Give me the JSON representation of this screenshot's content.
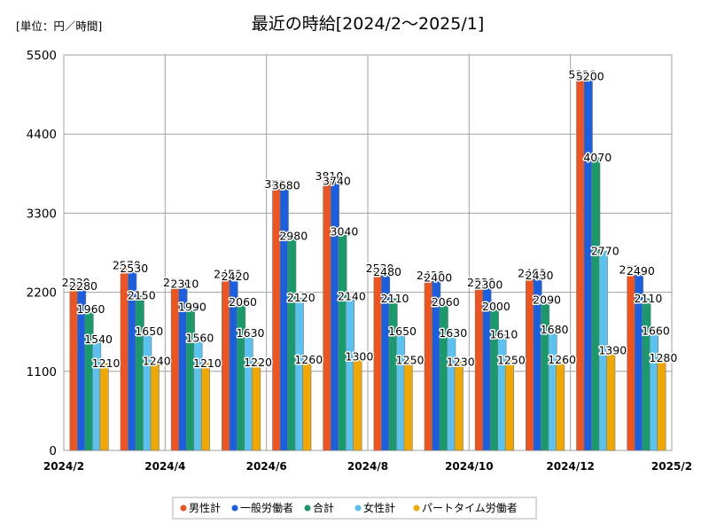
{
  "chart_data": {
    "type": "bar",
    "title": "最近の時給[2024/2～2025/1]",
    "unit_label": "[単位：円／時間]",
    "ylim": [
      0,
      5500
    ],
    "yticks": [
      0,
      1100,
      2200,
      3300,
      4400,
      5500
    ],
    "categories": [
      "2024/2",
      "2024/3",
      "2024/4",
      "2024/5",
      "2024/6",
      "2024/7",
      "2024/8",
      "2024/9",
      "2024/10",
      "2024/11",
      "2024/12",
      "2025/1"
    ],
    "x_tick_labels": [
      "2024/2",
      "2024/4",
      "2024/6",
      "2024/8",
      "2024/10",
      "2024/12",
      "2025/2"
    ],
    "grid": true,
    "legend_position": "bottom",
    "series": [
      {
        "name": "男性計",
        "color": "#f0541e",
        "values": [
          2330,
          2570,
          2330,
          2450,
          3700,
          3810,
          2530,
          2430,
          2330,
          2460,
          5220,
          2510
        ]
      },
      {
        "name": "一般労働者",
        "color": "#1a5fe0",
        "values": [
          2280,
          2530,
          2310,
          2420,
          3680,
          3740,
          2480,
          2400,
          2300,
          2430,
          5200,
          2490
        ]
      },
      {
        "name": "合計",
        "color": "#1a9a6a",
        "values": [
          1960,
          2150,
          1990,
          2060,
          2980,
          3040,
          2110,
          2060,
          2000,
          2090,
          4070,
          2110
        ]
      },
      {
        "name": "女性計",
        "color": "#5bc1ee",
        "values": [
          1540,
          1650,
          1560,
          1630,
          2120,
          2140,
          1650,
          1630,
          1610,
          1680,
          2770,
          1660
        ]
      },
      {
        "name": "パートタイム労働者",
        "color": "#f0a800",
        "values": [
          1210,
          1240,
          1210,
          1220,
          1260,
          1300,
          1250,
          1230,
          1250,
          1260,
          1390,
          1280
        ]
      }
    ]
  }
}
